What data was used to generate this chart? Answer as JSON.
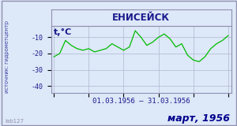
{
  "title": "ЕНИСЕЙСК",
  "ylabel": "t,°C",
  "xlabel_range": "01.03.1956 – 31.03.1956",
  "footer": "март, 1956",
  "watermark": "lab127",
  "source_label": "источник: гидрометцентр",
  "ylim": [
    -44,
    -3
  ],
  "yticks": [
    -40,
    -30,
    -20,
    -10
  ],
  "xlim": [
    0.5,
    31.5
  ],
  "days": [
    1,
    2,
    3,
    4,
    5,
    6,
    7,
    8,
    9,
    10,
    11,
    12,
    13,
    14,
    15,
    16,
    17,
    18,
    19,
    20,
    21,
    22,
    23,
    24,
    25,
    26,
    27,
    28,
    29,
    30,
    31
  ],
  "temps": [
    -22,
    -20,
    -12,
    -15,
    -17,
    -18,
    -17,
    -19,
    -18,
    -17,
    -14,
    -16,
    -18,
    -16,
    -6,
    -10,
    -15,
    -13,
    -10,
    -8,
    -11,
    -16,
    -14,
    -21,
    -24,
    -25,
    -22,
    -17,
    -14,
    -12,
    -9
  ],
  "line_color": "#00bb00",
  "plot_bg": "#dde8f8",
  "title_bar_bg": "#dde8f8",
  "outer_bg": "#dde8f8",
  "grid_color": "#b0b8d0",
  "title_color": "#1a1a8c",
  "ylabel_color": "#1a1a8c",
  "tick_color": "#1a1a8c",
  "date_range_color": "#1a1a8c",
  "footer_color": "#00008b",
  "watermark_color": "#9090b0",
  "source_color": "#3a3a9c",
  "border_color": "#9090b0",
  "title_fontsize": 8.5,
  "ylabel_fontsize": 8,
  "tick_fontsize": 6,
  "date_fontsize": 6.5,
  "footer_fontsize": 9,
  "source_fontsize": 4.8
}
